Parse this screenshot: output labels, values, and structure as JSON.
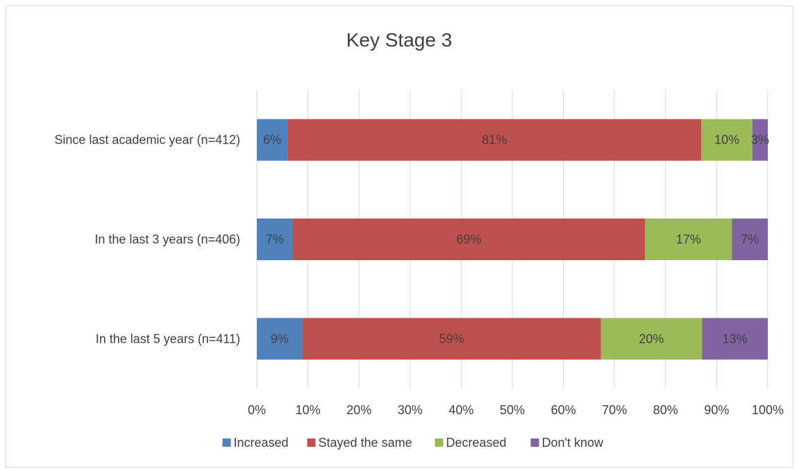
{
  "chart_data": {
    "type": "bar",
    "orientation": "horizontal",
    "stacked": "percent",
    "title": "Key Stage 3",
    "categories": [
      "Since last academic year (n=412)",
      "In the last 3 years (n=406)",
      "In the last 5 years (n=411)"
    ],
    "series": [
      {
        "name": "Increased",
        "color": "#4f81bd",
        "values": [
          6,
          7,
          9
        ],
        "labels": [
          "6%",
          "7%",
          "9%"
        ]
      },
      {
        "name": "Stayed the same",
        "color": "#c0504d",
        "values": [
          81,
          69,
          59
        ],
        "labels": [
          "81%",
          "69%",
          "59%"
        ]
      },
      {
        "name": "Decreased",
        "color": "#9bbb59",
        "values": [
          10,
          17,
          20
        ],
        "labels": [
          "10%",
          "17%",
          "20%"
        ]
      },
      {
        "name": "Don't know",
        "color": "#8064a2",
        "values": [
          3,
          7,
          13
        ],
        "labels": [
          "3%",
          "7%",
          "13%"
        ]
      }
    ],
    "xlim": [
      0,
      100
    ],
    "xticks": [
      "0%",
      "10%",
      "20%",
      "30%",
      "40%",
      "50%",
      "60%",
      "70%",
      "80%",
      "90%",
      "100%"
    ],
    "grid": "vertical",
    "legend_position": "bottom"
  }
}
